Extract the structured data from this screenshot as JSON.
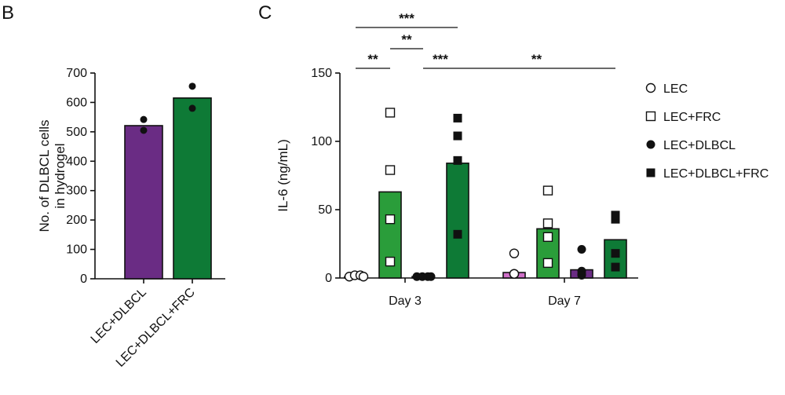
{
  "panel_b": {
    "letter": "B"
  },
  "panel_c": {
    "letter": "C"
  },
  "chart_data": [
    {
      "panel": "B",
      "type": "bar",
      "categories": [
        "LEC+DLBCL",
        "LEC+DLBCL+FRC"
      ],
      "values": [
        521,
        615
      ],
      "points": [
        [
          542,
          505
        ],
        [
          655,
          580
        ]
      ],
      "colors": [
        "#6a2c84",
        "#0e7a36"
      ],
      "ylabel": "No. of DLBCL cells in hydrogel",
      "ylabel_lines": [
        "No. of DLBCL cells",
        "in hydrogel"
      ],
      "ylim": [
        0,
        700
      ],
      "yticks": [
        0,
        100,
        200,
        300,
        400,
        500,
        600,
        700
      ],
      "grid": false
    },
    {
      "panel": "C",
      "type": "bar",
      "groups": [
        "Day 3",
        "Day 7"
      ],
      "ylabel": "IL-6 (ng/mL)",
      "ylim": [
        0,
        150
      ],
      "yticks": [
        0,
        50,
        100,
        150
      ],
      "grid": false,
      "legend_position": "right",
      "series": [
        {
          "name": "LEC",
          "marker": "circle-open",
          "color": "#cf6fc8",
          "values": [
            1,
            4
          ],
          "points": [
            [
              1,
              2,
              2,
              1
            ],
            [
              3,
              3,
              3,
              18
            ]
          ]
        },
        {
          "name": "LEC+FRC",
          "marker": "square-open",
          "color": "#2a9d3a",
          "values": [
            63,
            36
          ],
          "points": [
            [
              121,
              79,
              43,
              12
            ],
            [
              64,
              40,
              30,
              11
            ]
          ]
        },
        {
          "name": "LEC+DLBCL",
          "marker": "circle-filled",
          "color": "#6a2c84",
          "values": [
            1,
            6
          ],
          "points": [
            [
              1,
              1,
              1,
              1
            ],
            [
              21,
              5,
              3,
              2
            ]
          ]
        },
        {
          "name": "LEC+DLBCL+FRC",
          "marker": "square-filled",
          "color": "#0e7a36",
          "values": [
            84,
            28
          ],
          "points": [
            [
              117,
              104,
              86,
              32
            ],
            [
              43,
              46,
              18,
              8
            ]
          ]
        }
      ],
      "significance": [
        {
          "label": "***",
          "from": [
            0,
            0
          ],
          "to": [
            0,
            3
          ],
          "level": 1
        },
        {
          "label": "**",
          "from": [
            0,
            1
          ],
          "to": [
            0,
            2
          ],
          "level": 2
        },
        {
          "label": "**",
          "from": [
            0,
            0
          ],
          "to": [
            0,
            1
          ],
          "level": 3
        },
        {
          "label": "***",
          "from": [
            0,
            2
          ],
          "to": [
            0,
            3
          ],
          "level": 3
        },
        {
          "label": "**",
          "from": [
            0,
            3
          ],
          "to": [
            1,
            3
          ],
          "level": 3
        }
      ]
    }
  ]
}
